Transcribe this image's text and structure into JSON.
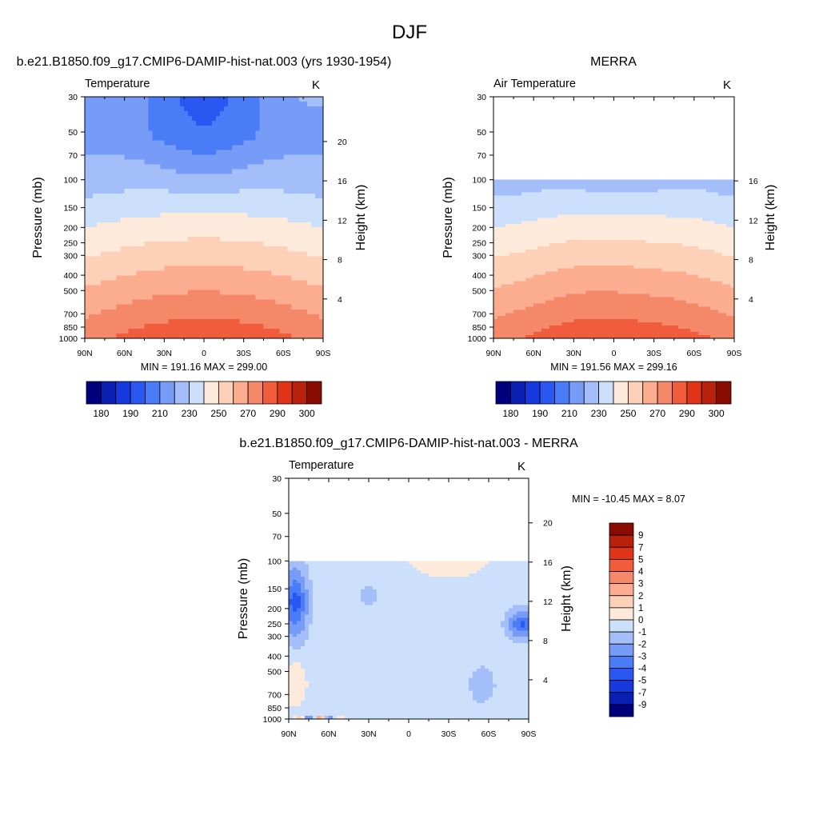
{
  "figure": {
    "title": "DJF"
  },
  "contour_colors": [
    "#00007d",
    "#0b1fb3",
    "#1539de",
    "#2a57f2",
    "#4a7cf7",
    "#779cf8",
    "#a3bef9",
    "#cde0fb",
    "#feeadb",
    "#fdd0b8",
    "#fdad8f",
    "#f6886a",
    "#f15c3c",
    "#e03418",
    "#b8210b",
    "#8a0c00"
  ],
  "chart_data": [
    {
      "id": "model",
      "type": "heatmap",
      "title": "b.e21.B1850.f09_g17.CMIP6-DAMIP-hist-nat.003 (yrs 1930-1954)",
      "left_label": "Temperature",
      "units": "K",
      "ylabel": "Pressure (mb)",
      "ylabel_right": "Height (km)",
      "x_ticks": [
        "90N",
        "60N",
        "30N",
        "0",
        "30S",
        "60S",
        "90S"
      ],
      "y_ticks": [
        "30",
        "50",
        "70",
        "100",
        "150",
        "200",
        "250",
        "300",
        "400",
        "500",
        "700",
        "850",
        "1000"
      ],
      "height_ticks": [
        "4",
        "8",
        "12",
        "16",
        "20"
      ],
      "stats": "MIN = 191.16  MAX = 299.00",
      "colorbar": {
        "orientation": "horizontal",
        "labels": [
          "180",
          "190",
          "210",
          "230",
          "250",
          "270",
          "290",
          "300"
        ]
      },
      "data_top_mb": 30,
      "field": "model"
    },
    {
      "id": "obs",
      "type": "heatmap",
      "title": "MERRA",
      "left_label": "Air Temperature",
      "units": "K",
      "ylabel": "Pressure (mb)",
      "ylabel_right": "Height (km)",
      "x_ticks": [
        "90N",
        "60N",
        "30N",
        "0",
        "30S",
        "60S",
        "90S"
      ],
      "y_ticks": [
        "30",
        "50",
        "70",
        "100",
        "150",
        "200",
        "250",
        "300",
        "400",
        "500",
        "700",
        "850",
        "1000"
      ],
      "height_ticks": [
        "4",
        "8",
        "12",
        "16"
      ],
      "stats": "MIN = 191.56  MAX = 299.16",
      "colorbar": {
        "orientation": "horizontal",
        "labels": [
          "180",
          "190",
          "210",
          "230",
          "250",
          "270",
          "290",
          "300"
        ]
      },
      "data_top_mb": 100,
      "field": "obs"
    },
    {
      "id": "diff",
      "type": "heatmap",
      "title": "b.e21.B1850.f09_g17.CMIP6-DAMIP-hist-nat.003 - MERRA",
      "left_label": "Temperature",
      "units": "K",
      "ylabel": "Pressure (mb)",
      "ylabel_right": "Height (km)",
      "x_ticks": [
        "90N",
        "60N",
        "30N",
        "0",
        "30S",
        "60S",
        "90S"
      ],
      "y_ticks": [
        "30",
        "50",
        "70",
        "100",
        "150",
        "200",
        "250",
        "300",
        "400",
        "500",
        "700",
        "850",
        "1000"
      ],
      "height_ticks": [
        "4",
        "8",
        "12",
        "16",
        "20"
      ],
      "stats": "MIN = -10.45  MAX =   8.07",
      "colorbar": {
        "orientation": "vertical",
        "labels": [
          "9",
          "7",
          "5",
          "4",
          "3",
          "2",
          "1",
          "0",
          "-1",
          "-2",
          "-3",
          "-4",
          "-5",
          "-7",
          "-9"
        ]
      },
      "data_top_mb": 100,
      "field": "diff"
    }
  ]
}
